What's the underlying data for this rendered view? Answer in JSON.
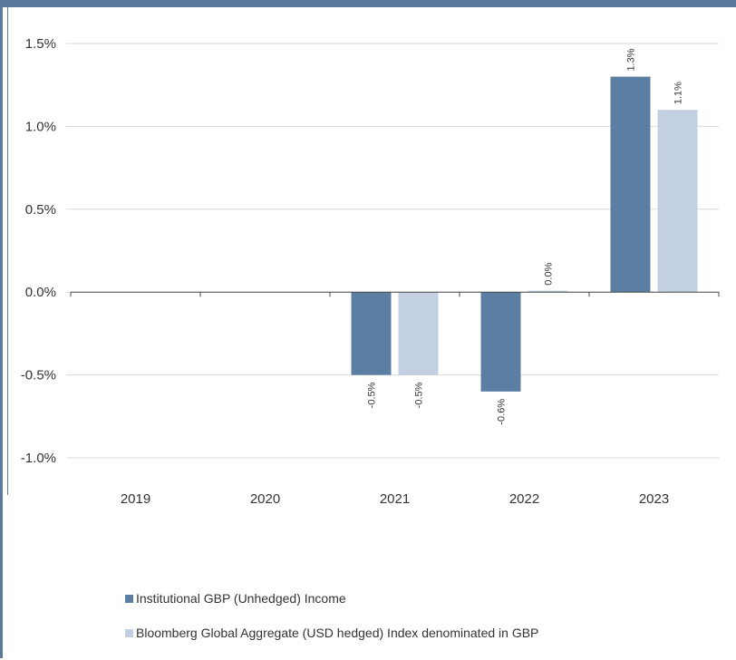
{
  "colors": {
    "series1": "#5b7fa3",
    "series2": "#c3d0e2",
    "frame": "#5a7a9c",
    "grid": "#d9d9d9",
    "axis": "#444444"
  },
  "chart_data": {
    "type": "bar",
    "categories": [
      "2019",
      "2020",
      "2021",
      "2022",
      "2023"
    ],
    "series": [
      {
        "name": "Institutional GBP (Unhedged) Income",
        "values": [
          null,
          null,
          -0.5,
          -0.6,
          1.3
        ]
      },
      {
        "name": "Bloomberg Global Aggregate (USD hedged) Index denominated in GBP",
        "values": [
          null,
          null,
          -0.5,
          0.0,
          1.1
        ]
      }
    ],
    "data_labels": [
      [
        null,
        null,
        "-0.5%",
        "-0.6%",
        "1.3%"
      ],
      [
        null,
        null,
        "-0.5%",
        "0.0%",
        "1.1%"
      ]
    ],
    "y_ticks": [
      1.5,
      1.0,
      0.5,
      0.0,
      -0.5,
      -1.0
    ],
    "y_tick_labels": [
      "1.5%",
      "1.0%",
      "0.5%",
      "0.0%",
      "-0.5%",
      "-1.0%"
    ],
    "ylim": [
      -1.0,
      1.5
    ],
    "grid": true,
    "legend_position": "bottom",
    "title": "",
    "xlabel": "",
    "ylabel": ""
  }
}
